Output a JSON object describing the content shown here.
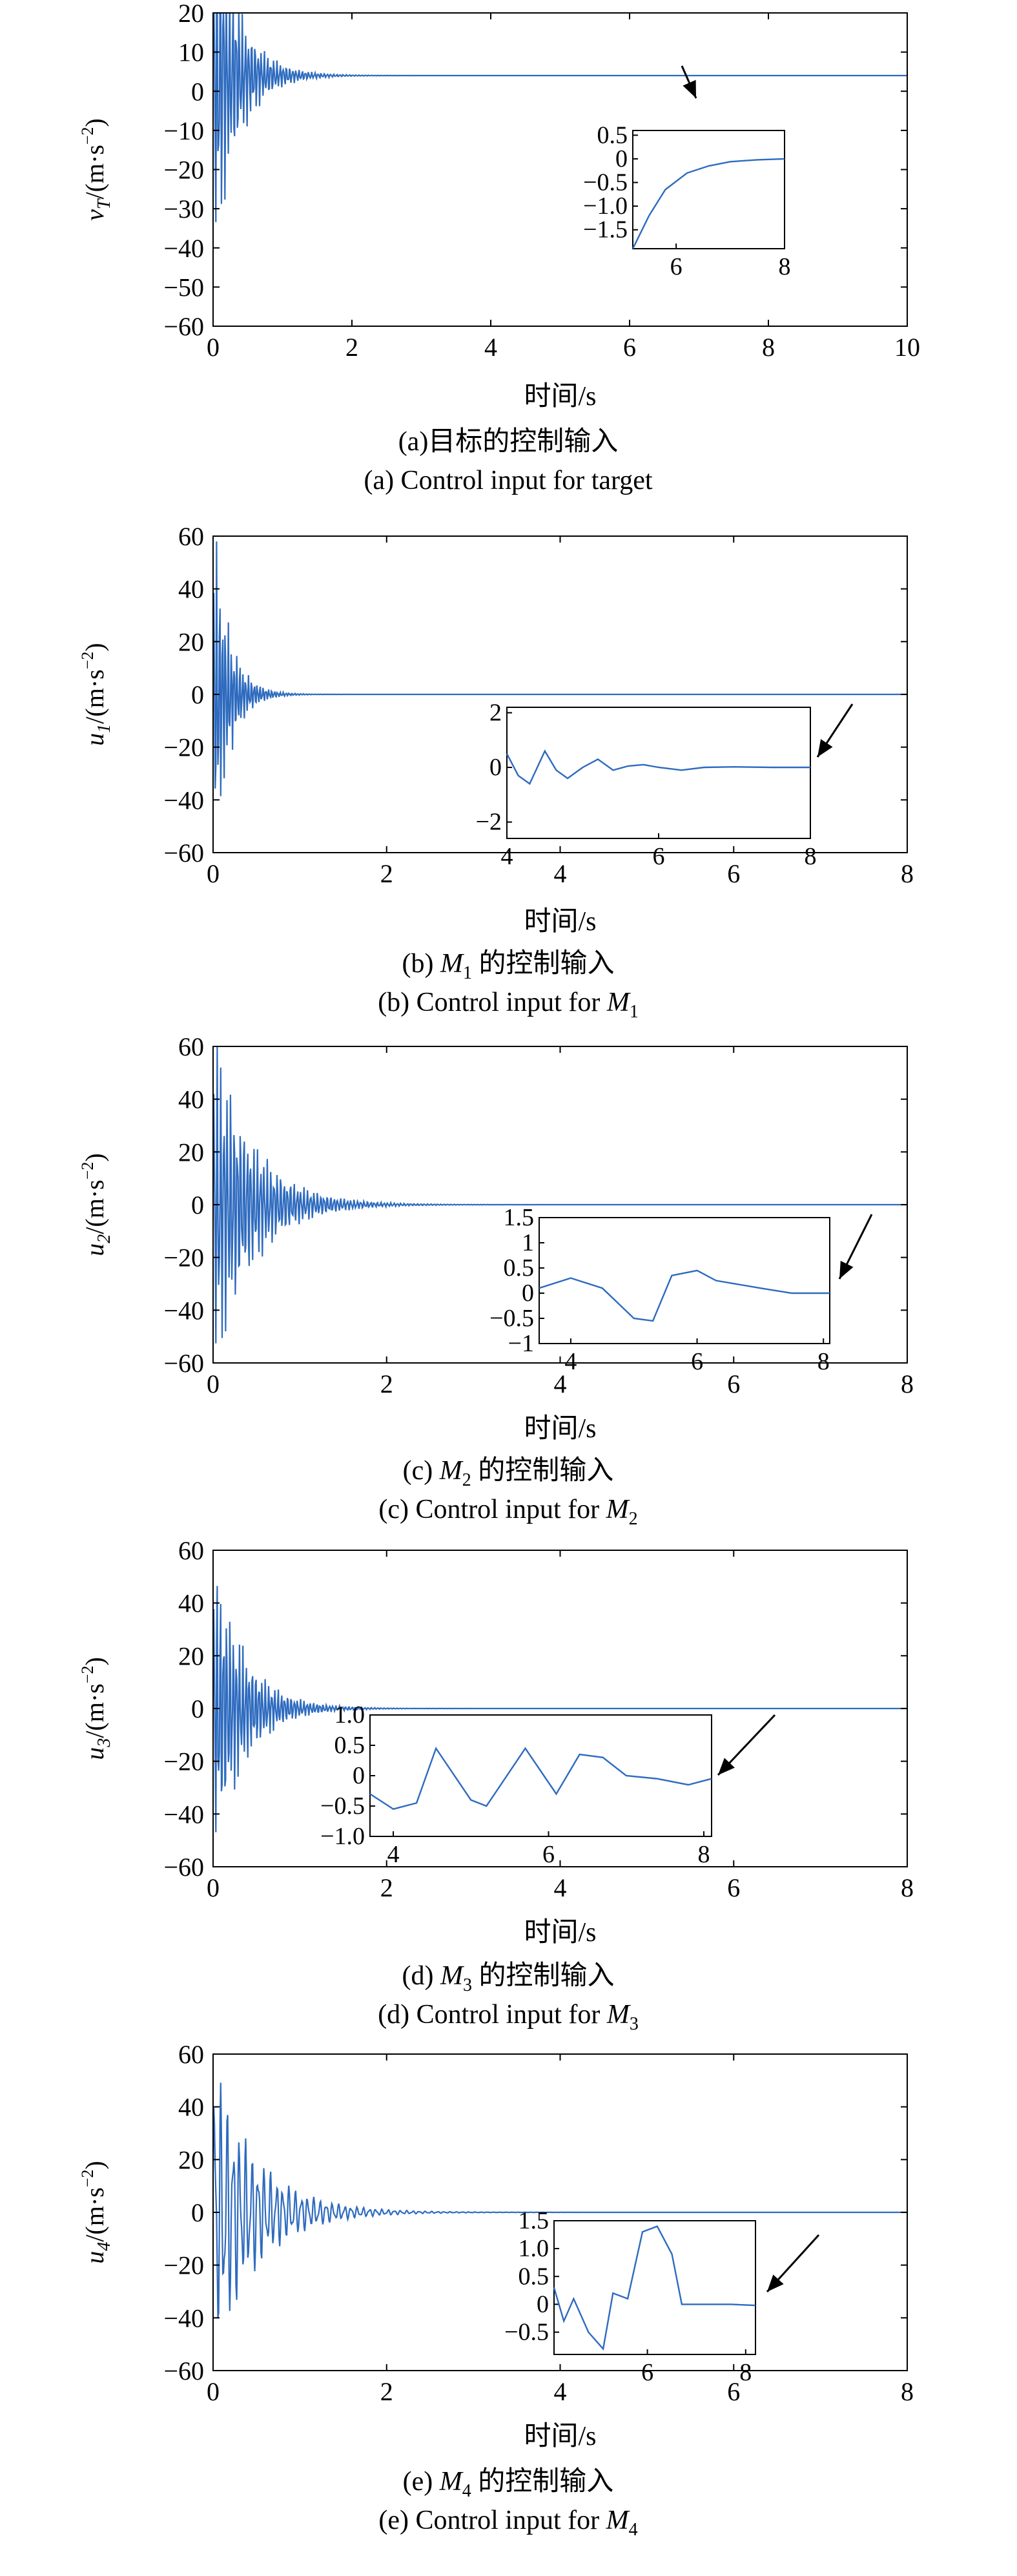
{
  "chart_data": [
    {
      "type": "line",
      "caption_cn": "(a)目标的控制输入",
      "caption_en": "(a) Control input for target",
      "xlabel": "时间/s",
      "ylabel": "v_T/(m·s⁻²)",
      "ylabel_parts": [
        "v",
        "T",
        "/(m·s",
        "−2",
        ")"
      ],
      "xlim": [
        0,
        10
      ],
      "ylim": [
        -60,
        20
      ],
      "xticks": [
        0,
        2,
        4,
        6,
        8,
        10
      ],
      "yticks": [
        -60,
        -50,
        -40,
        -30,
        -20,
        -10,
        0,
        10,
        20
      ],
      "color": "#2e6bbf",
      "series": [
        {
          "kind": "osc",
          "final": 4,
          "amp0": 55,
          "tau": 0.35,
          "freq": 22,
          "tEnd": 10,
          "dt": 0.01
        }
      ],
      "inset": {
        "xlim": [
          5.2,
          8
        ],
        "ylim": [
          -1.9,
          0.6
        ],
        "xticks": [
          6,
          8
        ],
        "yticks": [
          -1.5,
          -1.0,
          -0.5,
          0,
          0.5
        ],
        "ytick_labels": [
          "−1.5",
          "−1.0",
          "−0.5",
          "0",
          "0.5"
        ],
        "points": [
          [
            5.2,
            -1.9
          ],
          [
            5.5,
            -1.2
          ],
          [
            5.8,
            -0.65
          ],
          [
            6.2,
            -0.3
          ],
          [
            6.6,
            -0.15
          ],
          [
            7.0,
            -0.06
          ],
          [
            7.5,
            -0.02
          ],
          [
            8,
            0
          ]
        ]
      }
    },
    {
      "type": "line",
      "caption_cn": "(b) M₁ 的控制输入",
      "caption_en": "(b) Control input for M₁",
      "caption_parts": {
        "prefix": "(b) ",
        "var": "M",
        "sub": "1"
      },
      "xlabel": "时间/s",
      "ylabel_parts": [
        "u",
        "1",
        "/(m·s",
        "−2",
        ")"
      ],
      "xlim": [
        0,
        8
      ],
      "ylim": [
        -60,
        60
      ],
      "xticks": [
        0,
        2,
        4,
        6,
        8
      ],
      "yticks": [
        -60,
        -40,
        -20,
        0,
        20,
        40,
        60
      ],
      "color": "#2e6bbf",
      "series": [
        {
          "kind": "osc",
          "final": 0,
          "amp0": 75,
          "tau": 0.18,
          "freq": 30,
          "tEnd": 8,
          "dt": 0.008
        }
      ],
      "inset": {
        "xlim": [
          4,
          8
        ],
        "ylim": [
          -2.6,
          2.2
        ],
        "xticks": [
          4,
          6,
          8
        ],
        "yticks": [
          -2,
          0,
          2
        ],
        "ytick_labels": [
          "−2",
          "0",
          "2"
        ],
        "points": [
          [
            4,
            0.5
          ],
          [
            4.15,
            -0.3
          ],
          [
            4.3,
            -0.6
          ],
          [
            4.5,
            0.6
          ],
          [
            4.65,
            -0.1
          ],
          [
            4.8,
            -0.4
          ],
          [
            5.0,
            0.0
          ],
          [
            5.2,
            0.3
          ],
          [
            5.4,
            -0.1
          ],
          [
            5.6,
            0.05
          ],
          [
            5.8,
            0.1
          ],
          [
            6.0,
            0.0
          ],
          [
            6.3,
            -0.1
          ],
          [
            6.6,
            0.0
          ],
          [
            7.0,
            0.02
          ],
          [
            7.5,
            0.0
          ],
          [
            8,
            0.0
          ]
        ]
      }
    },
    {
      "type": "line",
      "caption_cn": "(c) M₂ 的控制输入",
      "caption_en": "(c) Control input for M₂",
      "caption_parts": {
        "prefix": "(c) ",
        "var": "M",
        "sub": "2"
      },
      "xlabel": "时间/s",
      "ylabel_parts": [
        "u",
        "2",
        "/(m·s",
        "−2",
        ")"
      ],
      "xlim": [
        0,
        8
      ],
      "ylim": [
        -60,
        60
      ],
      "xticks": [
        0,
        2,
        4,
        6,
        8
      ],
      "yticks": [
        -60,
        -40,
        -20,
        0,
        20,
        40,
        60
      ],
      "color": "#2e6bbf",
      "series": [
        {
          "kind": "osc",
          "final": 0,
          "amp0": 70,
          "tau": 0.45,
          "freq": 26,
          "tEnd": 8,
          "dt": 0.008
        }
      ],
      "inset": {
        "xlim": [
          3.5,
          8.1
        ],
        "ylim": [
          -1.0,
          1.5
        ],
        "xticks": [
          4,
          6,
          8
        ],
        "yticks": [
          -1,
          -0.5,
          0,
          0.5,
          1,
          1.5
        ],
        "ytick_labels": [
          "−1",
          "−0.5",
          "0",
          "0.5",
          "1",
          "1.5"
        ],
        "points": [
          [
            3.5,
            0.1
          ],
          [
            4.0,
            0.3
          ],
          [
            4.5,
            0.1
          ],
          [
            5.0,
            -0.5
          ],
          [
            5.3,
            -0.55
          ],
          [
            5.6,
            0.35
          ],
          [
            6.0,
            0.45
          ],
          [
            6.3,
            0.25
          ],
          [
            7.0,
            0.1
          ],
          [
            7.5,
            0.0
          ],
          [
            8.1,
            0.0
          ]
        ]
      }
    },
    {
      "type": "line",
      "caption_cn": "(d) M₃ 的控制输入",
      "caption_en": "(d) Control input for M₃",
      "caption_parts": {
        "prefix": "(d) ",
        "var": "M",
        "sub": "3"
      },
      "xlabel": "时间/s",
      "ylabel_parts": [
        "u",
        "3",
        "/(m·s",
        "−2",
        ")"
      ],
      "xlim": [
        0,
        8
      ],
      "ylim": [
        -60,
        60
      ],
      "xticks": [
        0,
        2,
        4,
        6,
        8
      ],
      "yticks": [
        -60,
        -40,
        -20,
        0,
        20,
        40,
        60
      ],
      "color": "#2e6bbf",
      "series": [
        {
          "kind": "osc",
          "final": 0,
          "amp0": 65,
          "tau": 0.35,
          "freq": 27,
          "tEnd": 8,
          "dt": 0.008
        }
      ],
      "inset": {
        "xlim": [
          3.7,
          8.1
        ],
        "ylim": [
          -1.0,
          1.0
        ],
        "xticks": [
          4,
          6,
          8
        ],
        "yticks": [
          -1.0,
          -0.5,
          0,
          0.5,
          1.0
        ],
        "ytick_labels": [
          "−1.0",
          "−0.5",
          "0",
          "0.5",
          "1.0"
        ],
        "points": [
          [
            3.7,
            -0.3
          ],
          [
            4.0,
            -0.55
          ],
          [
            4.3,
            -0.45
          ],
          [
            4.55,
            0.45
          ],
          [
            5.0,
            -0.4
          ],
          [
            5.2,
            -0.5
          ],
          [
            5.7,
            0.45
          ],
          [
            6.1,
            -0.3
          ],
          [
            6.4,
            0.35
          ],
          [
            6.7,
            0.3
          ],
          [
            7.0,
            0.0
          ],
          [
            7.4,
            -0.05
          ],
          [
            7.8,
            -0.15
          ],
          [
            8.1,
            -0.05
          ]
        ]
      }
    },
    {
      "type": "line",
      "caption_cn": "(e) M₄ 的控制输入",
      "caption_en": "(e) Control input for M₄",
      "caption_parts": {
        "prefix": "(e) ",
        "var": "M",
        "sub": "4"
      },
      "xlabel": "时间/s",
      "ylabel_parts": [
        "u",
        "4",
        "/(m·s",
        "−2",
        ")"
      ],
      "xlim": [
        0,
        8
      ],
      "ylim": [
        -60,
        60
      ],
      "xticks": [
        0,
        2,
        4,
        6,
        8
      ],
      "yticks": [
        -60,
        -40,
        -20,
        0,
        20,
        40,
        60
      ],
      "color": "#2e6bbf",
      "series": [
        {
          "kind": "osc",
          "final": 0,
          "amp0": 60,
          "tau": 0.5,
          "freq": 14,
          "tEnd": 8,
          "dt": 0.008
        }
      ],
      "inset": {
        "xlim": [
          4.1,
          8.2
        ],
        "ylim": [
          -0.9,
          1.5
        ],
        "xticks": [
          6,
          8
        ],
        "yticks": [
          -0.5,
          0,
          0.5,
          1.0,
          1.5
        ],
        "ytick_labels": [
          "−0.5",
          "0",
          "0.5",
          "1.0",
          "1.5"
        ],
        "points": [
          [
            4.1,
            0.3
          ],
          [
            4.3,
            -0.3
          ],
          [
            4.5,
            0.1
          ],
          [
            4.8,
            -0.5
          ],
          [
            5.1,
            -0.8
          ],
          [
            5.3,
            0.2
          ],
          [
            5.6,
            0.1
          ],
          [
            5.9,
            1.3
          ],
          [
            6.2,
            1.4
          ],
          [
            6.5,
            0.9
          ],
          [
            6.7,
            0.0
          ],
          [
            7.2,
            0.0
          ],
          [
            7.7,
            0.0
          ],
          [
            8.2,
            -0.02
          ]
        ]
      }
    }
  ]
}
